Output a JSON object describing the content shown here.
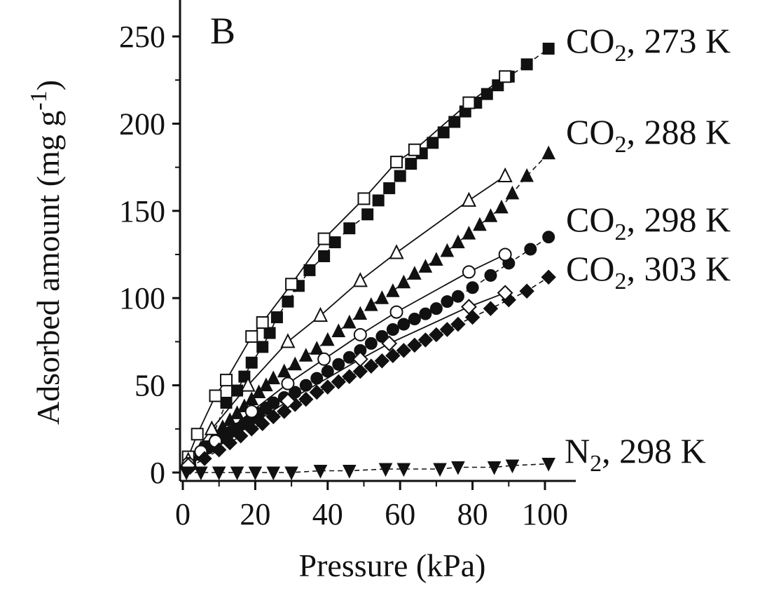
{
  "chart_data": {
    "type": "scatter",
    "panel_label": "B",
    "xlabel": "Pressure (kPa)",
    "ylabel": "Adsorbed amount (mg g-1)",
    "ylabel_parts": {
      "main": "Adsorbed amount (mg g",
      "sup": "-1",
      "end": ")"
    },
    "xlim": [
      0,
      108
    ],
    "ylim": [
      0,
      265
    ],
    "xticks": [
      0,
      20,
      40,
      60,
      80,
      100
    ],
    "yticks": [
      0,
      50,
      100,
      150,
      200,
      250
    ],
    "grid": false,
    "legend": "inline labels at right end of each series",
    "series": [
      {
        "name": "CO2, 273 K",
        "label": {
          "pre": "CO",
          "sub": "2",
          "post": ", 273 K"
        },
        "marker": "square",
        "adsorption": {
          "x": [
            2,
            7,
            12,
            15,
            17,
            19,
            22,
            24,
            26,
            29,
            32,
            35,
            39,
            42,
            46,
            51,
            54,
            57,
            60,
            63,
            66,
            69,
            72,
            75,
            78,
            81,
            84,
            87,
            90,
            95,
            101
          ],
          "y": [
            6,
            15,
            40,
            47,
            55,
            63,
            72,
            80,
            89,
            98,
            107,
            116,
            124,
            132,
            140,
            148,
            156,
            163,
            170,
            177,
            183,
            189,
            195,
            201,
            207,
            212,
            217,
            222,
            227,
            234,
            243
          ]
        },
        "desorption": {
          "x": [
            1.5,
            4,
            9,
            12,
            19,
            22,
            30,
            39,
            50,
            59,
            64,
            79,
            89
          ],
          "y": [
            9,
            22,
            44,
            53,
            78,
            86,
            108,
            134,
            157,
            178,
            185,
            212,
            227
          ]
        }
      },
      {
        "name": "CO2, 288 K",
        "label": {
          "pre": "CO",
          "sub": "2",
          "post": ", 288 K"
        },
        "marker": "triangle-up",
        "adsorption": {
          "x": [
            2,
            5,
            9,
            11,
            13,
            15,
            17,
            19,
            21,
            23,
            25,
            28,
            31,
            34,
            37,
            40,
            43,
            46,
            49,
            52,
            55,
            58,
            61,
            64,
            67,
            70,
            73,
            76,
            79,
            82,
            85,
            88,
            91,
            95,
            101
          ],
          "y": [
            5,
            14,
            22,
            26,
            30,
            34,
            38,
            42,
            46,
            50,
            54,
            58,
            62,
            67,
            71,
            76,
            81,
            86,
            91,
            96,
            100,
            104,
            109,
            114,
            118,
            122,
            127,
            132,
            137,
            142,
            147,
            152,
            160,
            170,
            183
          ]
        },
        "desorption": {
          "x": [
            1.5,
            8,
            18,
            29,
            38,
            49,
            59,
            79,
            89
          ],
          "y": [
            7,
            25,
            50,
            75,
            90,
            110,
            126,
            156,
            170
          ]
        }
      },
      {
        "name": "CO2, 298 K",
        "label": {
          "pre": "CO",
          "sub": "2",
          "post": ", 298 K"
        },
        "marker": "circle",
        "adsorption": {
          "x": [
            2,
            5,
            7,
            9,
            11,
            13,
            15,
            17,
            19,
            21,
            23,
            25,
            28,
            31,
            34,
            37,
            40,
            43,
            46,
            49,
            52,
            55,
            58,
            61,
            64,
            67,
            70,
            73,
            76,
            80,
            85,
            90,
            96,
            101
          ],
          "y": [
            4,
            10,
            14,
            17,
            20,
            23,
            25,
            28,
            31,
            34,
            37,
            40,
            43,
            46,
            50,
            54,
            58,
            62,
            66,
            70,
            74,
            78,
            82,
            85,
            88,
            91,
            94,
            98,
            101,
            106,
            113,
            120,
            128,
            135
          ]
        },
        "desorption": {
          "x": [
            1.5,
            5,
            9,
            19,
            29,
            39,
            49,
            59,
            79,
            89
          ],
          "y": [
            5,
            12,
            18,
            35,
            51,
            65,
            79,
            92,
            115,
            125
          ]
        }
      },
      {
        "name": "CO2, 303 K",
        "label": {
          "pre": "CO",
          "sub": "2",
          "post": ", 303 K"
        },
        "marker": "diamond",
        "adsorption": {
          "x": [
            2,
            6,
            10,
            13,
            16,
            19,
            22,
            25,
            28,
            31,
            34,
            37,
            40,
            43,
            46,
            49,
            52,
            55,
            58,
            61,
            64,
            67,
            70,
            73,
            76,
            80,
            85,
            90,
            95,
            101
          ],
          "y": [
            3,
            8,
            13,
            17,
            21,
            25,
            28,
            32,
            35,
            39,
            42,
            46,
            49,
            52,
            55,
            58,
            61,
            64,
            67,
            70,
            73,
            76,
            79,
            82,
            85,
            89,
            94,
            99,
            104,
            112
          ]
        },
        "desorption": {
          "x": [
            1.5,
            29,
            49,
            57,
            79,
            89
          ],
          "y": [
            4,
            41,
            65,
            74,
            95,
            103
          ]
        }
      },
      {
        "name": "N2, 298 K",
        "label": {
          "pre": "N",
          "sub": "2",
          "post": ", 298 K"
        },
        "marker": "triangle-down",
        "adsorption": {
          "x": [
            1,
            5,
            10,
            15,
            20,
            25,
            30,
            38,
            46,
            56,
            61,
            71,
            76,
            86,
            91,
            101
          ],
          "y": [
            0,
            0,
            0,
            0,
            0,
            0,
            0,
            1,
            1,
            2,
            2,
            2,
            3,
            3,
            4,
            5
          ]
        }
      }
    ]
  }
}
